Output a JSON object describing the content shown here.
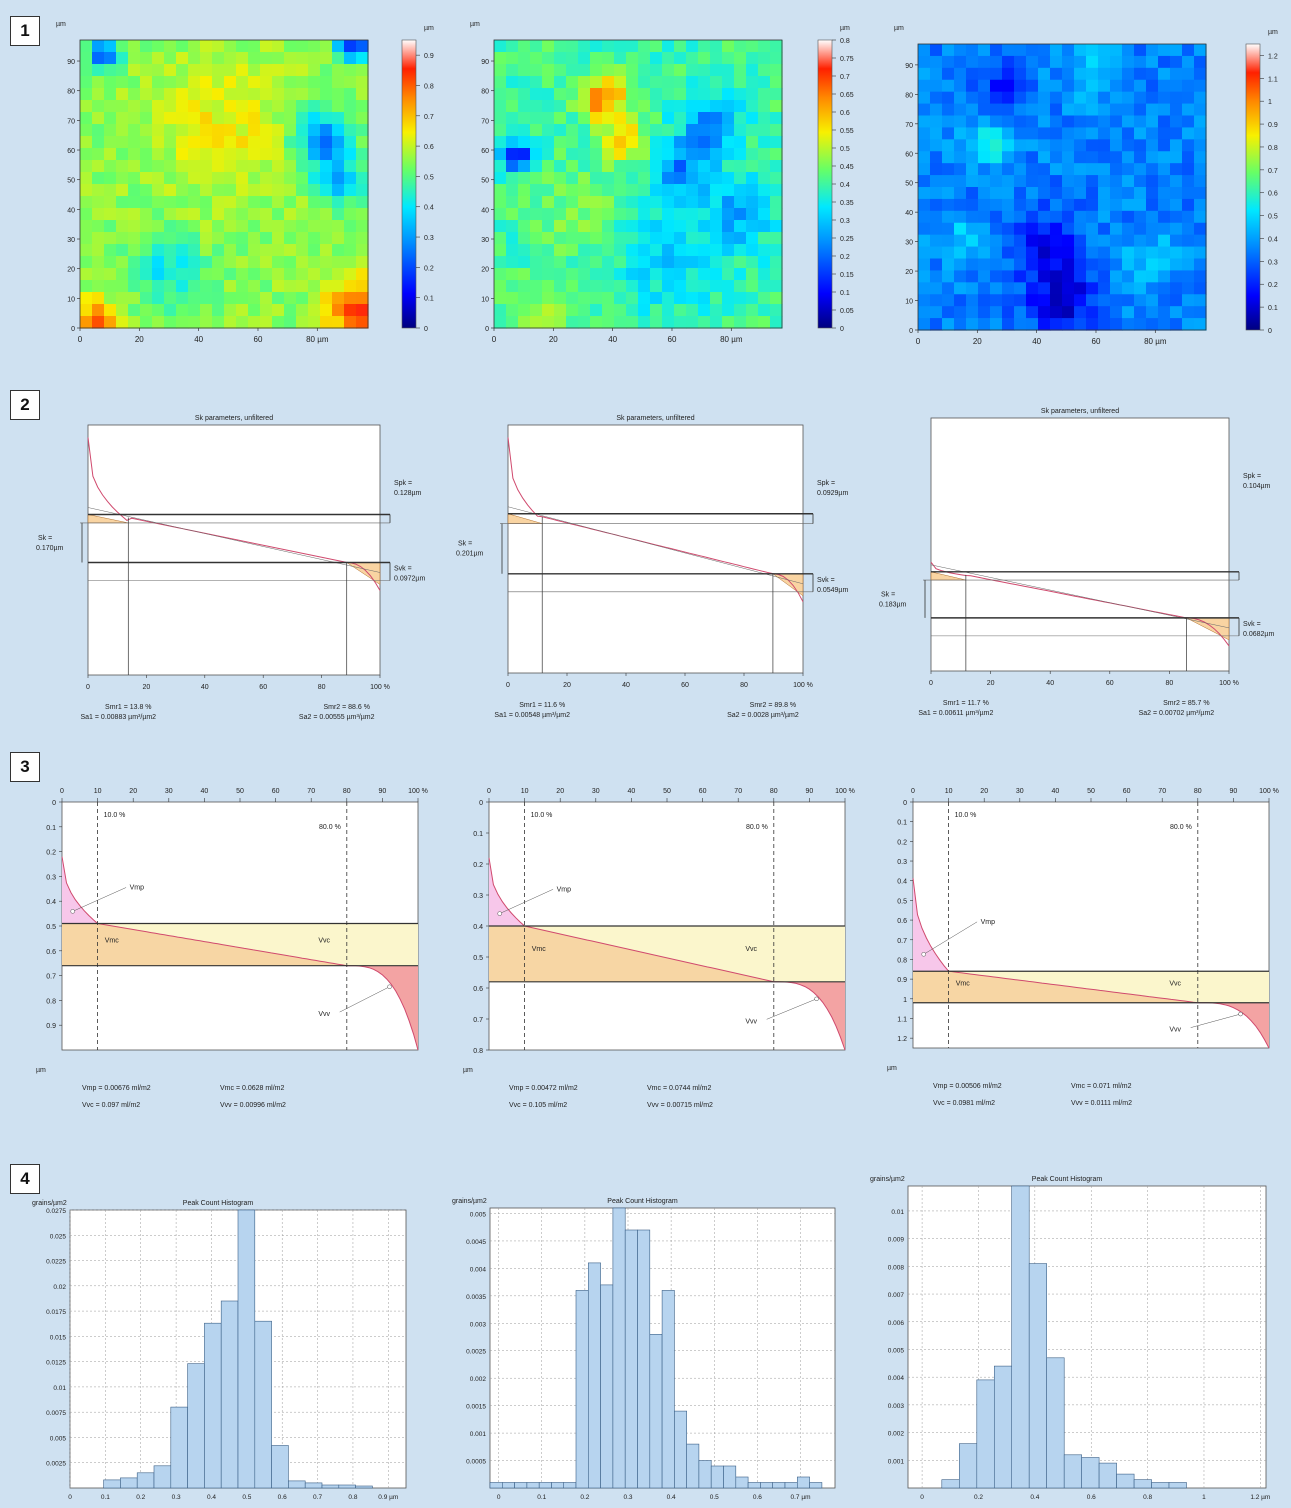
{
  "rows": [
    {
      "label": "1"
    },
    {
      "label": "2"
    },
    {
      "label": "3"
    },
    {
      "label": "4"
    }
  ],
  "chart_data": [
    {
      "type": "heatmap",
      "panel": "1a",
      "unit_top": "µm",
      "x_unit": "µm",
      "x_ticks": [
        0,
        20,
        40,
        60,
        80
      ],
      "x_tick_labels": [
        "0",
        "20",
        "40",
        "60",
        "80 µm"
      ],
      "y_ticks": [
        0,
        10,
        20,
        30,
        40,
        50,
        60,
        70,
        80,
        90
      ],
      "colorbar_unit": "µm",
      "colorbar_ticks": [
        "0",
        "0.1",
        "0.2",
        "0.3",
        "0.4",
        "0.5",
        "0.6",
        "0.7",
        "0.8",
        "0.9"
      ],
      "colorbar_range": [
        0,
        0.95
      ],
      "colorscale": "jet"
    },
    {
      "type": "heatmap",
      "panel": "1b",
      "unit_top": "µm",
      "x_unit": "µm",
      "x_ticks": [
        0,
        20,
        40,
        60,
        80
      ],
      "x_tick_labels": [
        "0",
        "20",
        "40",
        "60",
        "80 µm"
      ],
      "y_ticks": [
        0,
        10,
        20,
        30,
        40,
        50,
        60,
        70,
        80,
        90
      ],
      "colorbar_unit": "µm",
      "colorbar_ticks": [
        "0",
        "0.05",
        "0.1",
        "0.15",
        "0.2",
        "0.25",
        "0.3",
        "0.35",
        "0.4",
        "0.45",
        "0.5",
        "0.55",
        "0.6",
        "0.65",
        "0.7",
        "0.75",
        "0.8"
      ],
      "colorbar_range": [
        0,
        0.8
      ],
      "colorscale": "jet"
    },
    {
      "type": "heatmap",
      "panel": "1c",
      "unit_top": "µm",
      "x_unit": "µm",
      "x_ticks": [
        0,
        20,
        40,
        60,
        80
      ],
      "x_tick_labels": [
        "0",
        "20",
        "40",
        "60",
        "80 µm"
      ],
      "y_ticks": [
        0,
        10,
        20,
        30,
        40,
        50,
        60,
        70,
        80,
        90
      ],
      "colorbar_unit": "µm",
      "colorbar_ticks": [
        "0",
        "0.1",
        "0.2",
        "0.3",
        "0.4",
        "0.5",
        "0.6",
        "0.7",
        "0.8",
        "0.9",
        "1",
        "1.1",
        "1.2"
      ],
      "colorbar_range": [
        0,
        1.25
      ],
      "colorscale": "jet"
    },
    {
      "type": "line",
      "panel": "2a",
      "title": "Sk parameters, unfiltered",
      "x_ticks": [
        "0",
        "20",
        "40",
        "60",
        "80",
        "100 %"
      ],
      "spk_label": [
        "Spk =",
        "0.128µm"
      ],
      "sk_label": [
        "Sk =",
        "0.170µm"
      ],
      "svk_label": [
        "Svk =",
        "0.0972µm"
      ],
      "smr1": "Smr1 = 13.8 %",
      "sa1": "Sa1 = 0.00883 µm³/µm2",
      "smr2": "Smr2 = 88.6 %",
      "sa2": "Sa2 = 0.00555 µm³/µm2",
      "core_top": 0.37,
      "core_bottom": 0.55,
      "mr1": 13.8,
      "mr2": 88.6,
      "peak_top": 0.05
    },
    {
      "type": "line",
      "panel": "2b",
      "title": "Sk parameters, unfiltered",
      "x_ticks": [
        "0",
        "20",
        "40",
        "60",
        "80",
        "100 %"
      ],
      "spk_label": [
        "Spk =",
        "0.0929µm"
      ],
      "sk_label": [
        "Sk =",
        "0.201µm"
      ],
      "svk_label": [
        "Svk =",
        "0.0549µm"
      ],
      "smr1": "Smr1 = 11.6 %",
      "sa1": "Sa1 = 0.00548 µm³/µm2",
      "smr2": "Smr2 = 89.8 %",
      "sa2": "Sa2 = 0.0028 µm³/µm2",
      "core_top": 0.37,
      "core_bottom": 0.6,
      "mr1": 11.6,
      "mr2": 89.8,
      "peak_top": 0.05
    },
    {
      "type": "line",
      "panel": "2c",
      "title": "Sk parameters, unfiltered",
      "x_ticks": [
        "0",
        "20",
        "40",
        "60",
        "80",
        "100 %"
      ],
      "spk_label": [
        "Spk =",
        "0.104µm"
      ],
      "sk_label": [
        "Sk =",
        "0.183µm"
      ],
      "svk_label": [
        "Svk =",
        "0.0682µm"
      ],
      "smr1": "Smr1 = 11.7 %",
      "sa1": "Sa1 = 0.00611 µm³/µm2",
      "smr2": "Smr2 = 85.7 %",
      "sa2": "Sa2 = 0.00702 µm³/µm2",
      "core_top": 0.62,
      "core_bottom": 0.79,
      "mr1": 11.7,
      "mr2": 85.7,
      "peak_top": 0.57
    },
    {
      "type": "area",
      "panel": "3a",
      "x_ticks": [
        "0",
        "10",
        "20",
        "30",
        "40",
        "50",
        "60",
        "70",
        "80",
        "90",
        "100 %"
      ],
      "y_ticks": [
        "0",
        "0.1",
        "0.2",
        "0.3",
        "0.4",
        "0.5",
        "0.6",
        "0.7",
        "0.8",
        "0.9"
      ],
      "y_max": 1.0,
      "y_unit": "µm",
      "p1_label": "10.0 %",
      "p2_label": "80.0 %",
      "core_top": 0.49,
      "core_bottom": 0.66,
      "labels": {
        "vmp": "Vmp",
        "vmc": "Vmc",
        "vvc": "Vvc",
        "vvv": "Vvv"
      },
      "results": [
        "Vmp = 0.00676 ml/m2",
        "Vmc = 0.0628 ml/m2",
        "Vvc = 0.097 ml/m2",
        "Vvv = 0.00996 ml/m2"
      ]
    },
    {
      "type": "area",
      "panel": "3b",
      "x_ticks": [
        "0",
        "10",
        "20",
        "30",
        "40",
        "50",
        "60",
        "70",
        "80",
        "90",
        "100 %"
      ],
      "y_ticks": [
        "0",
        "0.1",
        "0.2",
        "0.3",
        "0.4",
        "0.5",
        "0.6",
        "0.7",
        "0.8"
      ],
      "y_max": 0.8,
      "y_unit": "µm",
      "p1_label": "10.0 %",
      "p2_label": "80.0 %",
      "core_top": 0.4,
      "core_bottom": 0.58,
      "labels": {
        "vmp": "Vmp",
        "vmc": "Vmc",
        "vvc": "Vvc",
        "vvv": "Vvv"
      },
      "results": [
        "Vmp = 0.00472 ml/m2",
        "Vmc = 0.0744 ml/m2",
        "Vvc = 0.105 ml/m2",
        "Vvv = 0.00715 ml/m2"
      ]
    },
    {
      "type": "area",
      "panel": "3c",
      "x_ticks": [
        "0",
        "10",
        "20",
        "30",
        "40",
        "50",
        "60",
        "70",
        "80",
        "90",
        "100 %"
      ],
      "y_ticks": [
        "0",
        "0.1",
        "0.2",
        "0.3",
        "0.4",
        "0.5",
        "0.6",
        "0.7",
        "0.8",
        "0.9",
        "1",
        "1.1",
        "1.2"
      ],
      "y_max": 1.25,
      "y_unit": "µm",
      "p1_label": "10.0 %",
      "p2_label": "80.0 %",
      "core_top": 0.86,
      "core_bottom": 1.02,
      "labels": {
        "vmp": "Vmp",
        "vmc": "Vmc",
        "vvc": "Vvc",
        "vvv": "Vvv"
      },
      "results": [
        "Vmp = 0.00506 ml/m2",
        "Vmc = 0.071 ml/m2",
        "Vvc = 0.0981 ml/m2",
        "Vvv = 0.0111 ml/m2"
      ]
    },
    {
      "type": "bar",
      "panel": "4a",
      "title": "Peak Count Histogram",
      "ylabel": "grains/µm2",
      "x_min": 0,
      "x_max": 0.95,
      "y_max": 0.0275,
      "x_ticks": [
        "0",
        "0.1",
        "0.2",
        "0.3",
        "0.4",
        "0.5",
        "0.6",
        "0.7",
        "0.8",
        "0.9 µm"
      ],
      "y_ticks": [
        "0.0275",
        "0.025",
        "0.0225",
        "0.02",
        "0.0175",
        "0.015",
        "0.0125",
        "0.01",
        "0.0075",
        "0.005",
        "0.0025"
      ],
      "bin_width": 0.0475,
      "bin_starts": [
        0.095,
        0.1425,
        0.19,
        0.2375,
        0.285,
        0.3325,
        0.38,
        0.4275,
        0.475,
        0.5225,
        0.57,
        0.6175,
        0.665,
        0.7125,
        0.76,
        0.8075
      ],
      "values": [
        0.0008,
        0.001,
        0.0015,
        0.0022,
        0.008,
        0.0123,
        0.0163,
        0.0185,
        0.0278,
        0.0165,
        0.0042,
        0.0007,
        0.0005,
        0.0003,
        0.0003,
        0.0002
      ]
    },
    {
      "type": "bar",
      "panel": "4b",
      "title": "Peak Count Histogram",
      "ylabel": "grains/µm2",
      "x_min": -0.02,
      "x_max": 0.78,
      "y_max": 0.0051,
      "x_ticks": [
        "0",
        "0.1",
        "0.2",
        "0.3",
        "0.4",
        "0.5",
        "0.6",
        "0.7 µm"
      ],
      "y_ticks": [
        "0.005",
        "0.0045",
        "0.004",
        "0.0035",
        "0.003",
        "0.0025",
        "0.002",
        "0.0015",
        "0.001",
        "0.0005"
      ],
      "bin_width": 0.0285,
      "bin_starts": [
        -0.02,
        0.0085,
        0.037,
        0.0655,
        0.094,
        0.1225,
        0.151,
        0.1795,
        0.208,
        0.2365,
        0.265,
        0.2935,
        0.322,
        0.3505,
        0.379,
        0.4075,
        0.436,
        0.4645,
        0.493,
        0.5215,
        0.55,
        0.5785,
        0.607,
        0.6355,
        0.664,
        0.6925,
        0.721
      ],
      "values": [
        0.0001,
        0.0001,
        0.0001,
        0.0001,
        0.0001,
        0.0001,
        0.0001,
        0.0036,
        0.0041,
        0.0037,
        0.0051,
        0.0047,
        0.0047,
        0.0028,
        0.0036,
        0.0014,
        0.0008,
        0.0005,
        0.0004,
        0.0004,
        0.0002,
        0.0001,
        0.0001,
        0.0001,
        0.0001,
        0.0002,
        0.0001
      ]
    },
    {
      "type": "bar",
      "panel": "4c",
      "title": "Peak Count Histogram",
      "ylabel": "grains/µm2",
      "x_min": -0.05,
      "x_max": 1.22,
      "y_max": 0.0109,
      "x_ticks": [
        "0",
        "0.2",
        "0.4",
        "0.6",
        "0.8",
        "1",
        "1.2 µm"
      ],
      "y_ticks": [
        "0.01",
        "0.009",
        "0.008",
        "0.007",
        "0.006",
        "0.005",
        "0.004",
        "0.003",
        "0.002",
        "0.001"
      ],
      "bin_width": 0.062,
      "bin_starts": [
        0.07,
        0.132,
        0.194,
        0.256,
        0.318,
        0.38,
        0.442,
        0.504,
        0.566,
        0.628,
        0.69,
        0.752,
        0.814,
        0.876
      ],
      "values": [
        0.0003,
        0.0016,
        0.0039,
        0.0044,
        0.011,
        0.0081,
        0.0047,
        0.0012,
        0.0011,
        0.0009,
        0.0005,
        0.0003,
        0.0002,
        0.0002
      ]
    }
  ]
}
